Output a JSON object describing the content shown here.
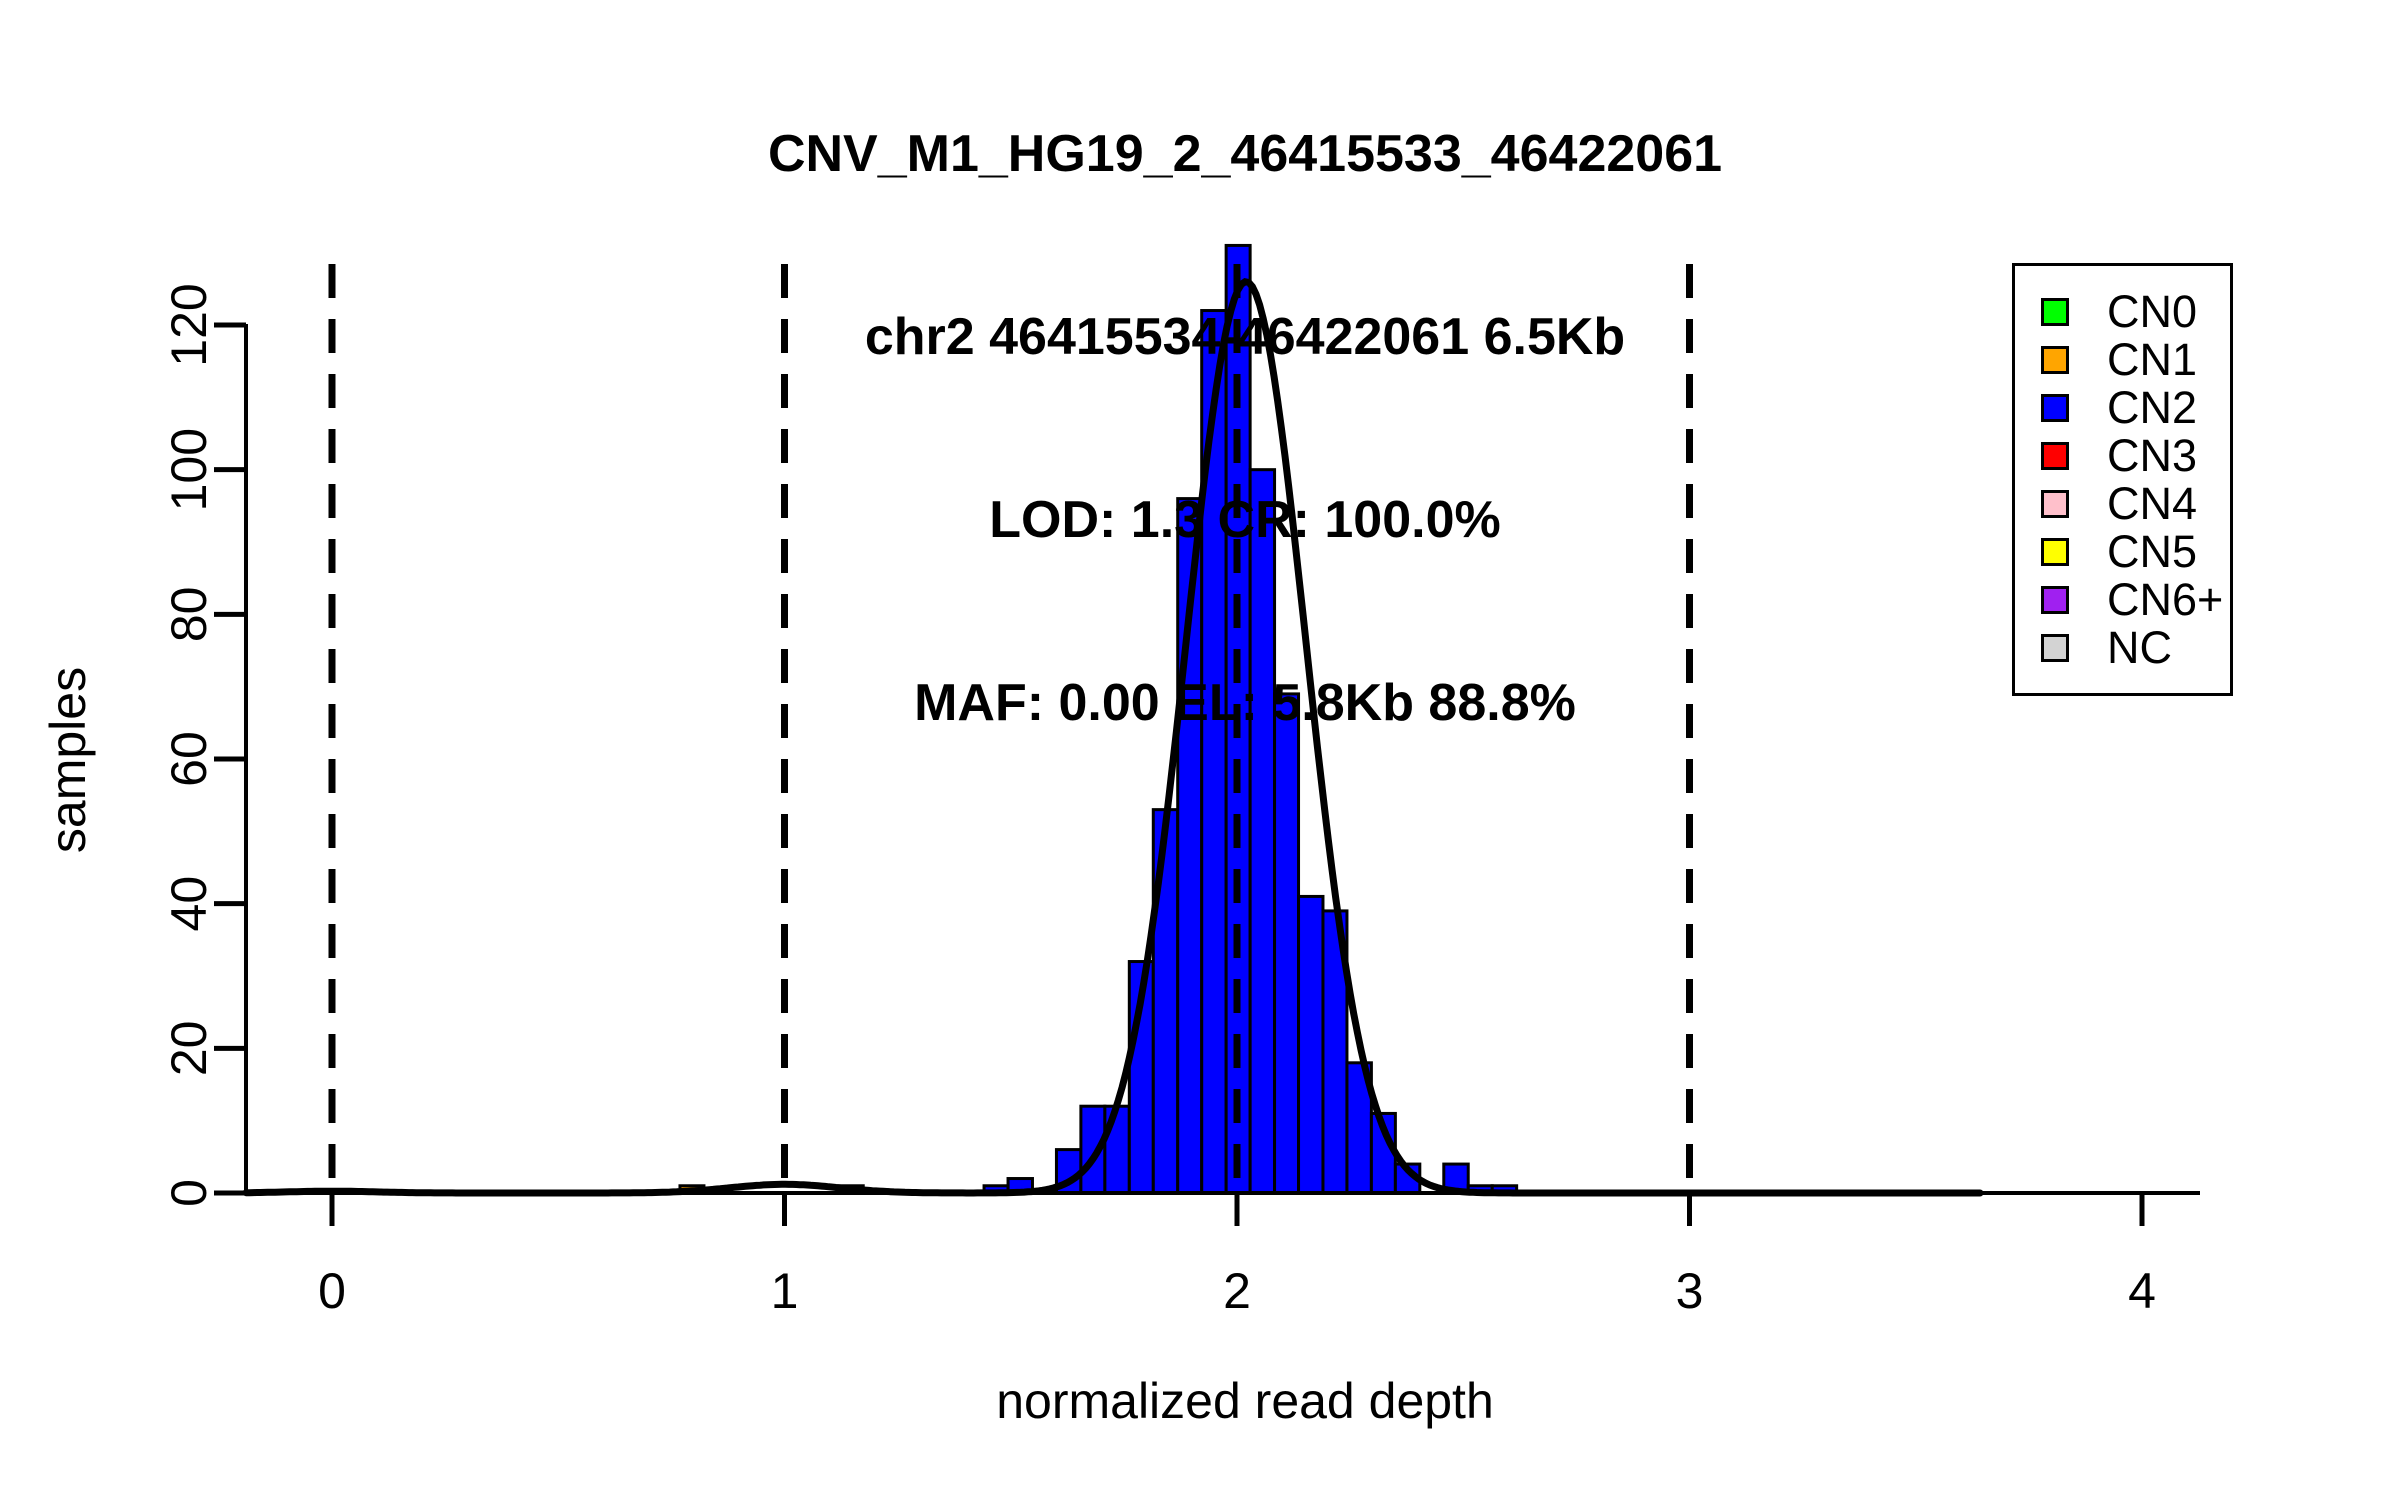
{
  "figure": {
    "background": "#FFFFFF"
  },
  "chart_data": {
    "type": "bar",
    "subtype": "histogram-with-gaussian-fit",
    "title_lines": [
      "CNV_M1_HG19_2_46415533_46422061",
      "chr2 46415534-46422061 6.5Kb",
      "LOD: 1.3 CR: 100.0%",
      "MAF: 0.00 EL: 5.8Kb 88.8%"
    ],
    "xlabel": "normalized read depth",
    "ylabel": "samples",
    "xlim": [
      -0.19,
      4.13
    ],
    "ylim": [
      0,
      131
    ],
    "x_ticks": [
      0,
      1,
      2,
      3,
      4
    ],
    "y_ticks": [
      0,
      20,
      40,
      60,
      80,
      100,
      120
    ],
    "dashed_guides_x": [
      0,
      1,
      2,
      3
    ],
    "grid": "off",
    "legend_position": "top-right",
    "bin_width": 0.0535,
    "bars": [
      {
        "x0": 0.769,
        "x1": 0.822,
        "count": 1,
        "cn": "CN1"
      },
      {
        "x0": 1.12,
        "x1": 1.174,
        "count": 1,
        "cn": "covered"
      },
      {
        "x0": 1.441,
        "x1": 1.494,
        "count": 1,
        "cn": "CN2"
      },
      {
        "x0": 1.494,
        "x1": 1.548,
        "count": 2,
        "cn": "CN2"
      },
      {
        "x0": 1.548,
        "x1": 1.601,
        "count": 0,
        "cn": "CN2"
      },
      {
        "x0": 1.601,
        "x1": 1.655,
        "count": 6,
        "cn": "CN2"
      },
      {
        "x0": 1.655,
        "x1": 1.708,
        "count": 12,
        "cn": "CN2"
      },
      {
        "x0": 1.708,
        "x1": 1.762,
        "count": 12,
        "cn": "CN2"
      },
      {
        "x0": 1.762,
        "x1": 1.815,
        "count": 32,
        "cn": "CN2"
      },
      {
        "x0": 1.815,
        "x1": 1.869,
        "count": 53,
        "cn": "CN2"
      },
      {
        "x0": 1.869,
        "x1": 1.922,
        "count": 96,
        "cn": "CN2"
      },
      {
        "x0": 1.922,
        "x1": 1.976,
        "count": 122,
        "cn": "CN2"
      },
      {
        "x0": 1.976,
        "x1": 2.029,
        "count": 131,
        "cn": "CN2"
      },
      {
        "x0": 2.029,
        "x1": 2.083,
        "count": 100,
        "cn": "CN2"
      },
      {
        "x0": 2.083,
        "x1": 2.136,
        "count": 69,
        "cn": "CN2"
      },
      {
        "x0": 2.136,
        "x1": 2.19,
        "count": 41,
        "cn": "CN2"
      },
      {
        "x0": 2.19,
        "x1": 2.243,
        "count": 39,
        "cn": "CN2"
      },
      {
        "x0": 2.243,
        "x1": 2.297,
        "count": 18,
        "cn": "CN2"
      },
      {
        "x0": 2.297,
        "x1": 2.35,
        "count": 11,
        "cn": "CN2"
      },
      {
        "x0": 2.35,
        "x1": 2.404,
        "count": 4,
        "cn": "CN2"
      },
      {
        "x0": 2.404,
        "x1": 2.457,
        "count": 0,
        "cn": "CN2"
      },
      {
        "x0": 2.457,
        "x1": 2.511,
        "count": 4,
        "cn": "CN2"
      },
      {
        "x0": 2.511,
        "x1": 2.564,
        "count": 1,
        "cn": "CN2"
      },
      {
        "x0": 2.564,
        "x1": 2.618,
        "count": 1,
        "cn": "CN2"
      }
    ],
    "fit_curve": {
      "color": "#000000",
      "domain": [
        -0.19,
        3.645
      ],
      "components": [
        {
          "mu": 0.0,
          "sigma": 0.1,
          "amp": 0.25
        },
        {
          "mu": 1.0,
          "sigma": 0.12,
          "amp": 1.2
        },
        {
          "mu": 2.02,
          "sigma": 0.132,
          "amp": 126
        }
      ]
    },
    "palette": {
      "CN0": "#00FF00",
      "CN1": "#FFA500",
      "CN2": "#0000FF",
      "CN3": "#FF0000",
      "CN4": "#FFC0CB",
      "CN5": "#FFFF00",
      "CN6+": "#A020F0",
      "NC": "#D3D3D3",
      "covered": "#000000"
    },
    "legend": [
      {
        "label": "CN0",
        "cn": "CN0"
      },
      {
        "label": "CN1",
        "cn": "CN1"
      },
      {
        "label": "CN2",
        "cn": "CN2"
      },
      {
        "label": "CN3",
        "cn": "CN3"
      },
      {
        "label": "CN4",
        "cn": "CN4"
      },
      {
        "label": "CN5",
        "cn": "CN5"
      },
      {
        "label": "CN6+",
        "cn": "CN6+"
      },
      {
        "label": "NC",
        "cn": "NC"
      }
    ]
  }
}
